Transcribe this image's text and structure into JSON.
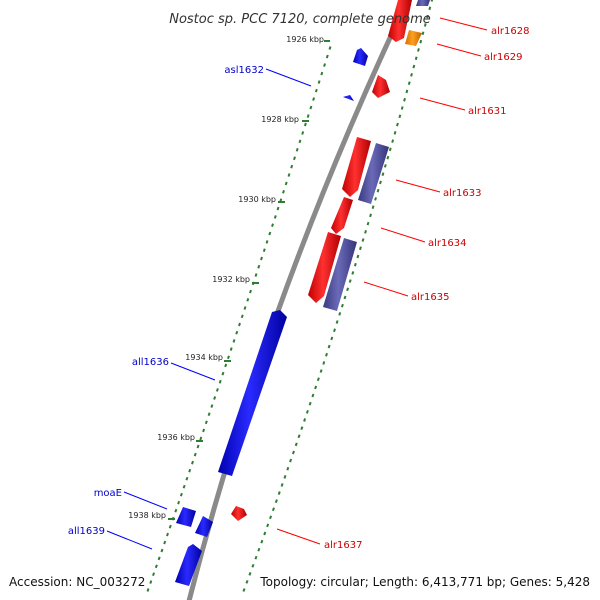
{
  "title": "Nostoc sp. PCC 7120, complete genome",
  "footer": {
    "accession": "Accession: NC_003272",
    "summary": "Topology: circular; Length: 6,413,771 bp; Genes: 5,428"
  },
  "colors": {
    "forward_gene": "#ff0000",
    "reverse_gene": "#0000ff",
    "rna_gene": "#ff8c00",
    "cds_feature": "#4a4a96",
    "backbone": "#808080",
    "tick": "#2e7d32",
    "forward_label": "#cc0000",
    "reverse_label": "#0000cc"
  },
  "ticks": [
    {
      "label": "1926 kbp"
    },
    {
      "label": "1928 kbp"
    },
    {
      "label": "1930 kbp"
    },
    {
      "label": "1932 kbp"
    },
    {
      "label": "1934 kbp"
    },
    {
      "label": "1936 kbp"
    },
    {
      "label": "1938 kbp"
    }
  ],
  "genes": [
    {
      "name": "alr1628",
      "strand": "forward"
    },
    {
      "name": "alr1629",
      "strand": "forward"
    },
    {
      "name": "asl1632",
      "strand": "reverse"
    },
    {
      "name": "alr1631",
      "strand": "forward"
    },
    {
      "name": "alr1633",
      "strand": "forward"
    },
    {
      "name": "alr1634",
      "strand": "forward"
    },
    {
      "name": "alr1635",
      "strand": "forward"
    },
    {
      "name": "all1636",
      "strand": "reverse"
    },
    {
      "name": "moaE",
      "strand": "reverse"
    },
    {
      "name": "alr1637",
      "strand": "forward"
    },
    {
      "name": "all1639",
      "strand": "reverse"
    }
  ]
}
